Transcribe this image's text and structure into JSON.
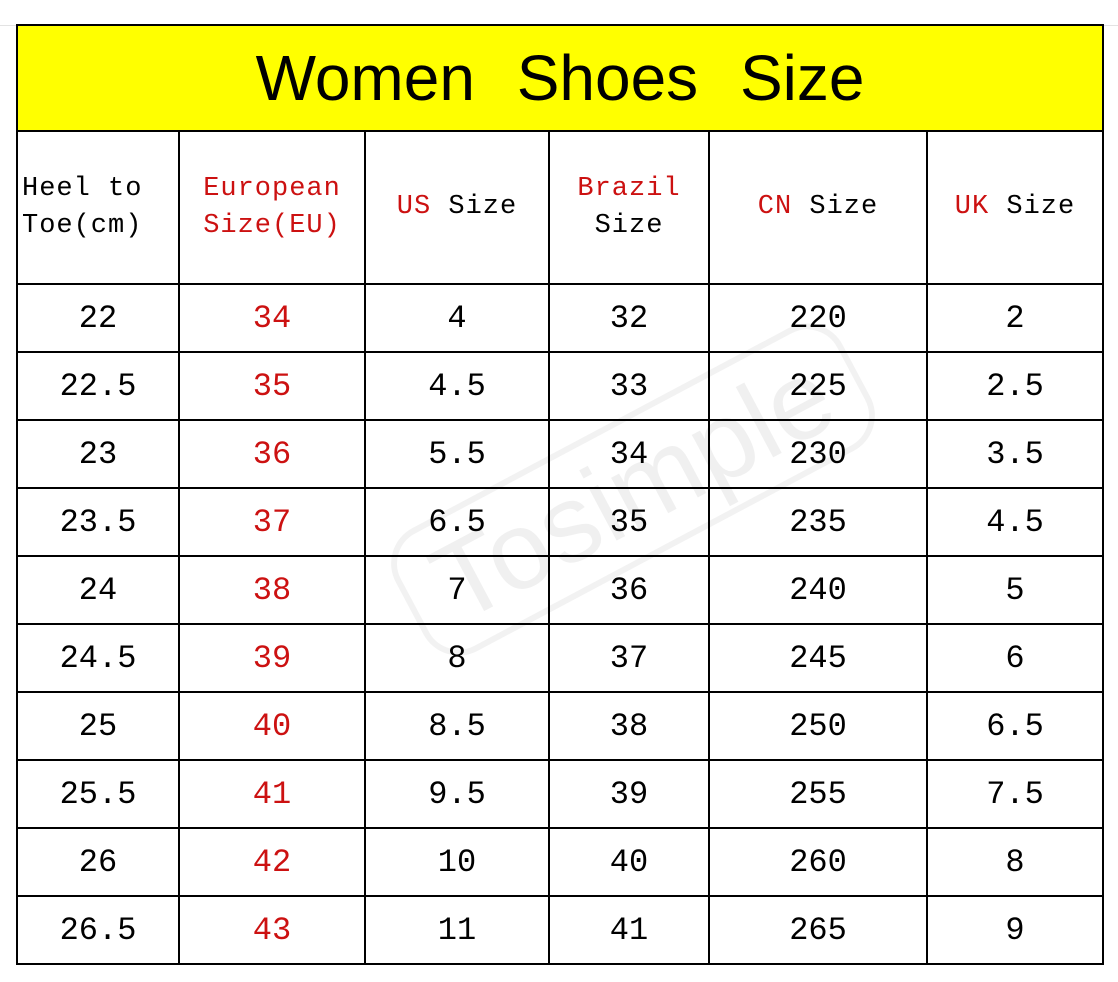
{
  "title": "Women  Shoes  Size",
  "headers": [
    {
      "red": "",
      "black": "Heel   to Toe(cm)"
    },
    {
      "red": "European Size(EU)",
      "black": ""
    },
    {
      "red": "US",
      "black": " Size"
    },
    {
      "red": "Brazil",
      "black": "Size"
    },
    {
      "red": "CN",
      "black": " Size"
    },
    {
      "red": "UK",
      "black": " Size"
    }
  ],
  "rows": [
    [
      "22",
      "34",
      "4",
      "32",
      "220",
      "2"
    ],
    [
      "22.5",
      "35",
      "4.5",
      "33",
      "225",
      "2.5"
    ],
    [
      "23",
      "36",
      "5.5",
      "34",
      "230",
      "3.5"
    ],
    [
      "23.5",
      "37",
      "6.5",
      "35",
      "235",
      "4.5"
    ],
    [
      "24",
      "38",
      "7",
      "36",
      "240",
      "5"
    ],
    [
      "24.5",
      "39",
      "8",
      "37",
      "245",
      "6"
    ],
    [
      "25",
      "40",
      "8.5",
      "38",
      "250",
      "6.5"
    ],
    [
      "25.5",
      "41",
      "9.5",
      "39",
      "255",
      "7.5"
    ],
    [
      "26",
      "42",
      "10",
      "40",
      "260",
      "8"
    ],
    [
      "26.5",
      "43",
      "11",
      "41",
      "265",
      "9"
    ]
  ],
  "watermark": "Tosimple",
  "colors": {
    "title_bg": "#ffff00",
    "accent_red": "#cc1111"
  }
}
